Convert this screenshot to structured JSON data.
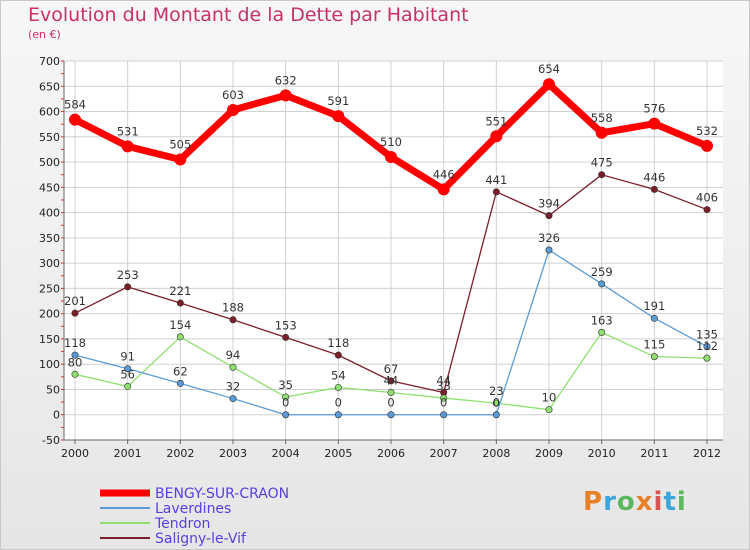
{
  "header": {
    "title": "Evolution du Montant de la Dette par Habitant",
    "unit": "(en €)"
  },
  "logo": {
    "text": "Proxiti",
    "colors": [
      "#e8802a",
      "#3da5d9",
      "#5cb85c",
      "#e8802a",
      "#d9534f",
      "#3da5d9",
      "#5cb85c"
    ]
  },
  "chart_data": {
    "type": "line",
    "title": "Evolution du Montant de la Dette par Habitant",
    "ylabel": "(en €)",
    "xlabel": "",
    "x": [
      "2000",
      "2001",
      "2002",
      "2003",
      "2004",
      "2005",
      "2006",
      "2007",
      "2008",
      "2009",
      "2010",
      "2011",
      "2012"
    ],
    "ylim": [
      -50,
      700
    ],
    "yticks": [
      "-50",
      "0",
      "50",
      "100",
      "150",
      "200",
      "250",
      "300",
      "350",
      "400",
      "450",
      "500",
      "550",
      "600",
      "650",
      "700"
    ],
    "grid": true,
    "legend_position": "bottom-left",
    "series": [
      {
        "name": "BENGY-SUR-CRAON",
        "color": "#ff0000",
        "values": [
          584,
          531,
          505,
          603,
          632,
          591,
          510,
          446,
          551,
          654,
          558,
          576,
          532
        ],
        "labels": [
          "584",
          "531",
          "505",
          "603",
          "632",
          "591",
          "510",
          "446",
          "551",
          "654",
          "558",
          "576",
          "532"
        ]
      },
      {
        "name": "Laverdines",
        "color": "#5b9bd5",
        "values": [
          118,
          91,
          62,
          32,
          0,
          0,
          0,
          0,
          0,
          326,
          259,
          191,
          135
        ],
        "labels": [
          "118",
          "91",
          "62",
          "32",
          "0",
          "0",
          "0",
          "0",
          "0",
          "326",
          "259",
          "191",
          "135"
        ]
      },
      {
        "name": "Tendron",
        "color": "#90e070",
        "values": [
          80,
          56,
          154,
          94,
          35,
          54,
          44,
          33,
          23,
          10,
          163,
          115,
          112
        ],
        "labels": [
          "80",
          "56",
          "154",
          "94",
          "35",
          "54",
          "44",
          "33",
          "23",
          "10",
          "163",
          "115",
          "112"
        ]
      },
      {
        "name": "Saligny-le-Vif",
        "color": "#7a1f2a",
        "values": [
          201,
          253,
          221,
          188,
          153,
          118,
          67,
          44,
          441,
          394,
          475,
          446,
          406
        ],
        "labels": [
          "201",
          "253",
          "221",
          "188",
          "153",
          "118",
          "67",
          "44",
          "441",
          "394",
          "475",
          "446",
          "406"
        ]
      }
    ]
  }
}
